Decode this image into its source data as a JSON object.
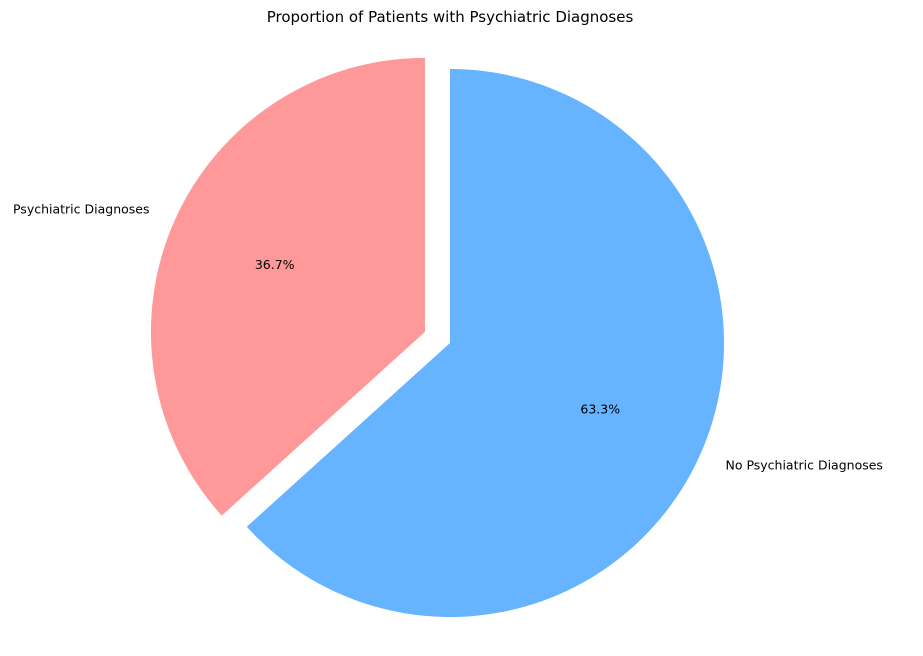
{
  "chart_data": {
    "type": "pie",
    "title": "Proportion of Patients with Psychiatric Diagnoses",
    "start_angle_deg": 90,
    "direction": "counterclockwise",
    "slices": [
      {
        "label": "Psychiatric Diagnoses",
        "value": 36.7,
        "pct_label": "36.7%",
        "color": "#ff9999",
        "explode": 0.1
      },
      {
        "label": "No Psychiatric Diagnoses",
        "value": 63.3,
        "pct_label": "63.3%",
        "color": "#66b3ff",
        "explode": 0
      }
    ]
  }
}
